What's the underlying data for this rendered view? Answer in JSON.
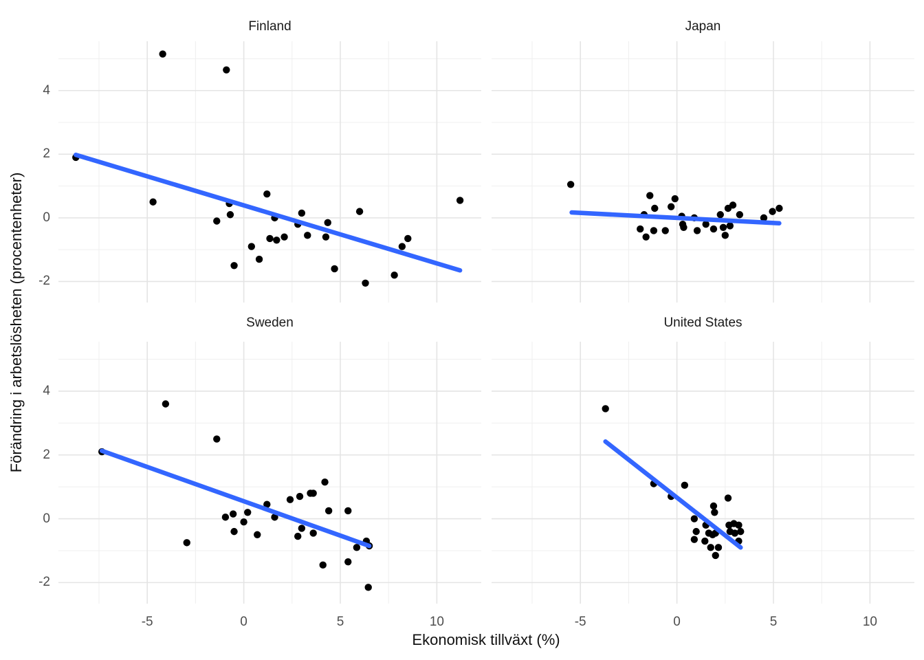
{
  "figure": {
    "xlabel": "Ekonomisk tillväxt (%)",
    "ylabel": "Förändring i arbetslösheten (procentenheter)"
  },
  "chart_data": {
    "type": "scatter",
    "title": "",
    "xlabel": "Ekonomisk tillväxt (%)",
    "ylabel": "Förändring i arbetslösheten (procentenheter)",
    "facet_layout": "2x2",
    "xlim": [
      -9.6,
      12.3
    ],
    "ylim": [
      -2.66,
      5.55
    ],
    "x_ticks": [
      -5,
      0,
      5,
      10
    ],
    "y_ticks": [
      4,
      2,
      0,
      -2
    ],
    "x_minor_ticks": [
      -7.5,
      -2.5,
      2.5,
      7.5
    ],
    "y_minor_ticks": [
      5,
      3,
      1,
      -1
    ],
    "grid": "on",
    "legend": "none",
    "colors": {
      "point": "#000000",
      "trend_line": "#3366FF",
      "grid_major": "#E4E4E4",
      "grid_minor": "#EFEFEF",
      "axis_text": "#4D4D4D",
      "strip_text": "#1A1A1A",
      "background": "#FFFFFF"
    },
    "facets": [
      {
        "name": "Finland",
        "trend_line": {
          "x": [
            -8.7,
            11.2
          ],
          "y": [
            1.98,
            -1.65
          ]
        },
        "points": [
          [
            -8.7,
            1.9
          ],
          [
            -4.7,
            0.5
          ],
          [
            -4.2,
            5.15
          ],
          [
            -1.4,
            -0.1
          ],
          [
            -0.9,
            4.65
          ],
          [
            -0.75,
            0.45
          ],
          [
            -0.7,
            0.1
          ],
          [
            -0.5,
            -1.5
          ],
          [
            0.4,
            -0.9
          ],
          [
            0.8,
            -1.3
          ],
          [
            1.2,
            0.75
          ],
          [
            1.35,
            -0.65
          ],
          [
            1.6,
            0.0
          ],
          [
            1.7,
            -0.7
          ],
          [
            2.1,
            -0.6
          ],
          [
            2.8,
            -0.2
          ],
          [
            3.0,
            0.15
          ],
          [
            3.3,
            -0.55
          ],
          [
            4.25,
            -0.6
          ],
          [
            4.35,
            -0.15
          ],
          [
            4.7,
            -1.6
          ],
          [
            6.0,
            0.2
          ],
          [
            6.3,
            -2.05
          ],
          [
            7.8,
            -1.8
          ],
          [
            8.2,
            -0.9
          ],
          [
            8.5,
            -0.65
          ],
          [
            11.2,
            0.55
          ]
        ]
      },
      {
        "name": "Japan",
        "trend_line": {
          "x": [
            -5.45,
            5.3
          ],
          "y": [
            0.17,
            -0.17
          ]
        },
        "points": [
          [
            -5.5,
            1.05
          ],
          [
            -1.9,
            -0.35
          ],
          [
            -1.7,
            0.1
          ],
          [
            -1.6,
            -0.6
          ],
          [
            -1.4,
            0.7
          ],
          [
            -1.2,
            -0.4
          ],
          [
            -1.15,
            0.3
          ],
          [
            -0.6,
            -0.4
          ],
          [
            -0.3,
            0.35
          ],
          [
            -0.1,
            0.6
          ],
          [
            0.25,
            0.05
          ],
          [
            0.3,
            -0.2
          ],
          [
            0.35,
            -0.3
          ],
          [
            0.9,
            0.0
          ],
          [
            1.05,
            -0.4
          ],
          [
            1.5,
            -0.2
          ],
          [
            1.9,
            -0.35
          ],
          [
            2.25,
            0.1
          ],
          [
            2.4,
            -0.3
          ],
          [
            2.5,
            -0.55
          ],
          [
            2.65,
            0.3
          ],
          [
            2.75,
            -0.25
          ],
          [
            2.9,
            0.4
          ],
          [
            3.25,
            0.1
          ],
          [
            4.5,
            0.0
          ],
          [
            4.95,
            0.2
          ],
          [
            5.3,
            0.3
          ]
        ]
      },
      {
        "name": "Sweden",
        "trend_line": {
          "x": [
            -7.35,
            6.5
          ],
          "y": [
            2.13,
            -0.85
          ]
        },
        "points": [
          [
            -7.35,
            2.1
          ],
          [
            -4.05,
            3.6
          ],
          [
            -2.95,
            -0.75
          ],
          [
            -1.4,
            2.5
          ],
          [
            -0.95,
            0.05
          ],
          [
            -0.55,
            0.15
          ],
          [
            -0.5,
            -0.4
          ],
          [
            0.0,
            -0.1
          ],
          [
            0.2,
            0.2
          ],
          [
            0.7,
            -0.5
          ],
          [
            1.2,
            0.45
          ],
          [
            1.6,
            0.05
          ],
          [
            2.4,
            0.6
          ],
          [
            2.8,
            -0.55
          ],
          [
            2.9,
            0.7
          ],
          [
            3.0,
            -0.3
          ],
          [
            3.45,
            0.8
          ],
          [
            3.6,
            0.8
          ],
          [
            3.6,
            -0.45
          ],
          [
            4.1,
            -1.45
          ],
          [
            4.2,
            1.15
          ],
          [
            4.4,
            0.25
          ],
          [
            5.4,
            0.25
          ],
          [
            5.4,
            -1.35
          ],
          [
            5.85,
            -0.9
          ],
          [
            6.35,
            -0.7
          ],
          [
            6.45,
            -2.15
          ],
          [
            6.5,
            -0.85
          ]
        ]
      },
      {
        "name": "United States",
        "trend_line": {
          "x": [
            -3.7,
            3.3
          ],
          "y": [
            2.42,
            -0.9
          ]
        },
        "points": [
          [
            -3.7,
            3.45
          ],
          [
            -1.2,
            1.1
          ],
          [
            -0.3,
            0.7
          ],
          [
            0.4,
            1.05
          ],
          [
            0.9,
            0.0
          ],
          [
            0.9,
            -0.65
          ],
          [
            1.0,
            -0.4
          ],
          [
            1.45,
            -0.7
          ],
          [
            1.5,
            -0.2
          ],
          [
            1.65,
            -0.45
          ],
          [
            1.75,
            -0.9
          ],
          [
            1.85,
            -0.5
          ],
          [
            1.9,
            0.4
          ],
          [
            1.95,
            0.2
          ],
          [
            2.0,
            -0.45
          ],
          [
            2.0,
            -1.15
          ],
          [
            2.15,
            -0.9
          ],
          [
            2.65,
            0.65
          ],
          [
            2.7,
            -0.2
          ],
          [
            2.75,
            -0.4
          ],
          [
            2.95,
            -0.15
          ],
          [
            3.0,
            -0.45
          ],
          [
            3.2,
            -0.2
          ],
          [
            3.2,
            -0.7
          ],
          [
            3.3,
            -0.4
          ]
        ]
      }
    ]
  }
}
